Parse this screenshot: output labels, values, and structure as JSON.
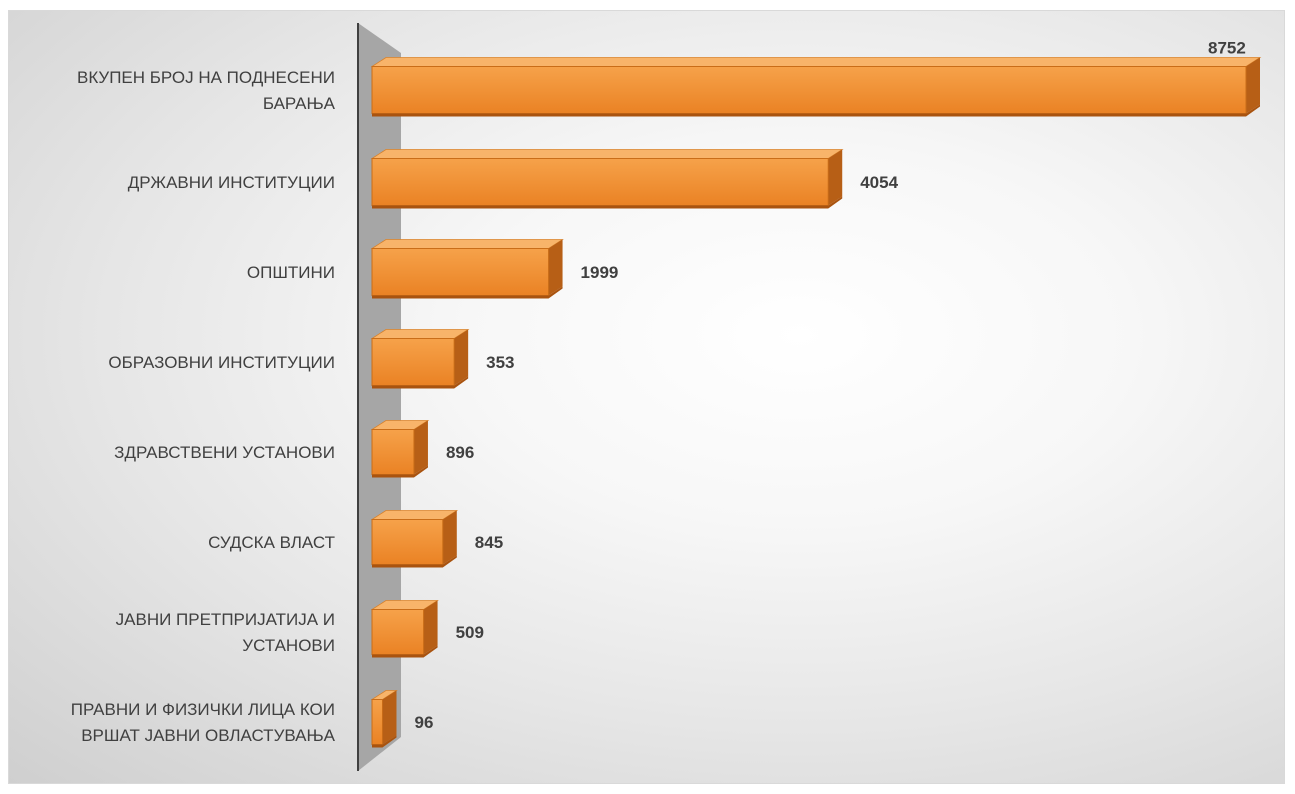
{
  "chart_data": {
    "type": "bar",
    "orientation": "horizontal",
    "style": "3d",
    "categories": [
      "ВКУПЕН БРОЈ НА ПОДНЕСЕНИ БАРАЊА",
      "ДРЖАВНИ ИНСТИТУЦИИ",
      "ОПШТИНИ",
      "ОБРАЗОВНИ ИНСТИТУЦИИ",
      "ЗДРАВСТВЕНИ УСТАНОВИ",
      "СУДСКА ВЛАСТ",
      "ЈАВНИ ПРЕТПРИЈАТИЈА И УСТАНОВИ",
      "ПРАВНИ И ФИЗИЧКИ ЛИЦА КОИ ВРШАТ ЈАВНИ ОВЛАСТУВАЊА"
    ],
    "label_lines": [
      [
        "ВКУПЕН БРОЈ НА ПОДНЕСЕНИ",
        "БАРАЊА"
      ],
      [
        "ДРЖАВНИ ИНСТИТУЦИИ"
      ],
      [
        "ОПШТИНИ"
      ],
      [
        "ОБРАЗОВНИ ИНСТИТУЦИИ"
      ],
      [
        "ЗДРАВСТВЕНИ УСТАНОВИ"
      ],
      [
        "СУДСКА ВЛАСТ"
      ],
      [
        "ЈАВНИ ПРЕТПРИЈАТИЈА И",
        "УСТАНОВИ"
      ],
      [
        "ПРАВНИ И ФИЗИЧКИ ЛИЦА КОИ",
        "ВРШАТ ЈАВНИ ОВЛАСТУВАЊА"
      ]
    ],
    "series": [
      {
        "values": [
          8752,
          4054,
          1999,
          353,
          896,
          845,
          509,
          96
        ],
        "display_fraction": [
          1.0,
          0.522,
          0.202,
          0.094,
          0.048,
          0.081,
          0.059,
          0.012
        ],
        "data_labels": [
          "8752",
          "4054",
          "1999",
          "353",
          "896",
          "845",
          "509",
          "96"
        ]
      }
    ],
    "title": "",
    "xlabel": "",
    "ylabel": "",
    "grid": false,
    "legend": "none",
    "colors": {
      "bar_front_light": "#f6a24a",
      "bar_front_dark": "#ea8224",
      "bar_top": "#f8b46a",
      "bar_side": "#b75f16",
      "bar_bottom": "#a9530f",
      "axis_wall": "#a6a6a6",
      "axis_line": "#404040",
      "text": "#404040"
    }
  }
}
